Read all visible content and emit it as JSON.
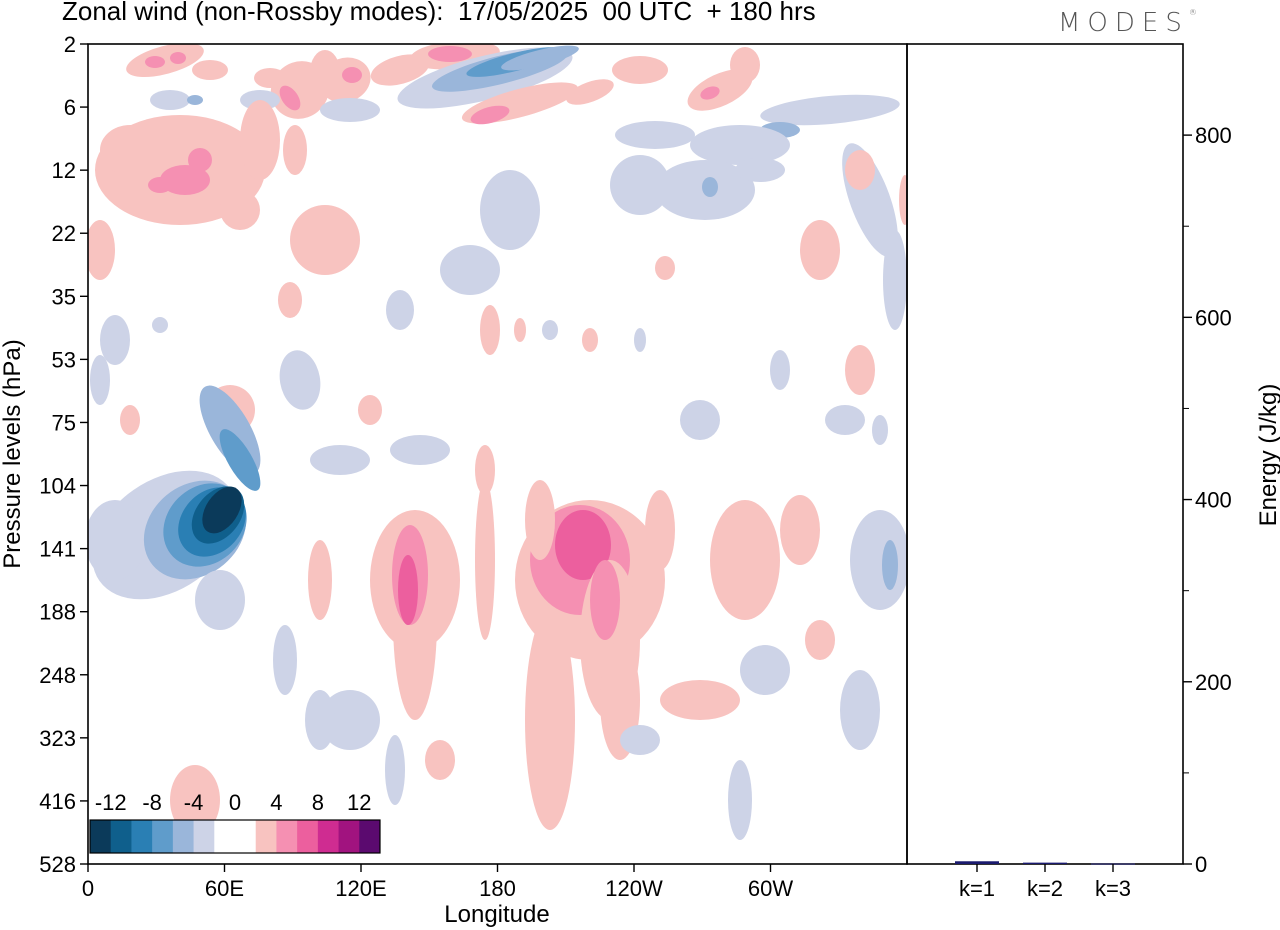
{
  "header": {
    "title": "Zonal wind (non-Rossby modes):  17/05/2025  00 UTC  + 180 hrs",
    "logo": "MODES"
  },
  "chart_data": [
    {
      "type": "heatmap",
      "title": "Zonal wind (non-Rossby modes):  17/05/2025  00 UTC  + 180 hrs",
      "xlabel": "Longitude",
      "ylabel": "Pressure levels (hPa)",
      "x_ticks": [
        "0",
        "60E",
        "120E",
        "180",
        "120W",
        "60W"
      ],
      "y_ticks": [
        "2",
        "6",
        "12",
        "22",
        "35",
        "53",
        "75",
        "104",
        "141",
        "188",
        "248",
        "323",
        "416",
        "528"
      ],
      "colorbar": {
        "labels": [
          "-12",
          "-8",
          "-4",
          "0",
          "4",
          "8",
          "12"
        ],
        "colors": [
          "#0b3a5a",
          "#0f5f8c",
          "#2a7fb4",
          "#5f9ccb",
          "#9ab6da",
          "#cdd3e7",
          "#ffffff",
          "#ffffff",
          "#f8c3c0",
          "#f590b2",
          "#ec5f9e",
          "#cf2c91",
          "#a1137f",
          "#5b0a6f"
        ]
      },
      "features": [
        {
          "level_range": [
            "104",
            "248"
          ],
          "lon_range": [
            "20E",
            "75E"
          ],
          "sign": "negative",
          "peak": -14
        },
        {
          "level_range": [
            "104",
            "300"
          ],
          "lon_range": [
            "125E",
            "130E"
          ],
          "sign": "positive",
          "peak": 8
        },
        {
          "level_range": [
            "104",
            "200"
          ],
          "lon_range": [
            "160W",
            "140W"
          ],
          "sign": "positive",
          "peak": 8
        },
        {
          "level_range": [
            "2",
            "6"
          ],
          "lon_range": [
            "150E",
            "170W"
          ],
          "sign": "negative",
          "peak": -8
        }
      ]
    },
    {
      "type": "bar",
      "categories": [
        "k=1",
        "k=2",
        "k=3"
      ],
      "values": [
        3,
        1.5,
        0.5
      ],
      "ylabel": "Energy (J/kg)",
      "ylim": [
        0,
        900
      ],
      "y_ticks": [
        0,
        200,
        400,
        600,
        800
      ],
      "bar_color": "#1a1a6e"
    }
  ]
}
